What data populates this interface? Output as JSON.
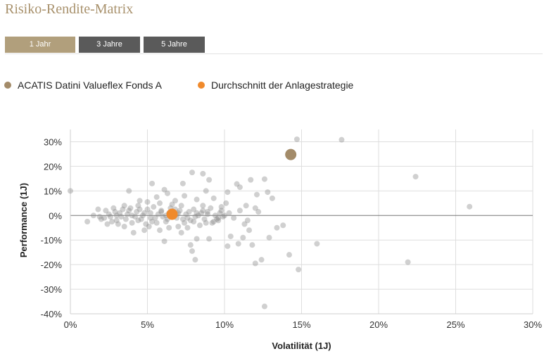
{
  "page": {
    "title": "Risiko-Rendite-Matrix"
  },
  "tabs": [
    {
      "label": "1 Jahr",
      "active": true,
      "color": "#b19f7c"
    },
    {
      "label": "3 Jahre",
      "active": false,
      "color": "#5a5a5a"
    },
    {
      "label": "5 Jahre",
      "active": false,
      "color": "#5a5a5a"
    }
  ],
  "legend": [
    {
      "label": "ACATIS Datini Valueflex Fonds A",
      "color": "#a38b69"
    },
    {
      "label": "Durchschnitt der Anlagestrategie",
      "color": "#f08a2c"
    }
  ],
  "chart_data": {
    "type": "scatter",
    "xlabel": "Volatilität (1J)",
    "ylabel": "Performance (1J)",
    "xlim": [
      0,
      30
    ],
    "ylim": [
      -40,
      35
    ],
    "x_ticks": [
      {
        "value": 0,
        "label": "0%"
      },
      {
        "value": 5,
        "label": "5%"
      },
      {
        "value": 10,
        "label": "10%"
      },
      {
        "value": 15,
        "label": "15%"
      },
      {
        "value": 20,
        "label": "20%"
      },
      {
        "value": 25,
        "label": "25%"
      },
      {
        "value": 30,
        "label": "30%"
      }
    ],
    "y_ticks": [
      {
        "value": 30,
        "label": "30%"
      },
      {
        "value": 20,
        "label": "20%"
      },
      {
        "value": 10,
        "label": "10%"
      },
      {
        "value": 0,
        "label": "0%"
      },
      {
        "value": -10,
        "label": "-10%"
      },
      {
        "value": -20,
        "label": "-20%"
      },
      {
        "value": -30,
        "label": "-30%"
      },
      {
        "value": -40,
        "label": "-40%"
      }
    ],
    "grid": true,
    "series": [
      {
        "name": "ACATIS Datini Valueflex Fonds A",
        "color": "#a38b69",
        "points": [
          {
            "x": 14.3,
            "y": 24.8
          }
        ]
      },
      {
        "name": "Durchschnitt der Anlagestrategie",
        "color": "#f08a2c",
        "points": [
          {
            "x": 6.6,
            "y": 0.5
          }
        ]
      },
      {
        "name": "",
        "color": "#8a8a8a",
        "points": [
          {
            "x": 14.7,
            "y": 31.0
          },
          {
            "x": 17.6,
            "y": 30.8
          },
          {
            "x": 22.4,
            "y": 15.8
          },
          {
            "x": 25.9,
            "y": 3.6
          },
          {
            "x": 0.0,
            "y": 10.0
          },
          {
            "x": 3.8,
            "y": 10.0
          },
          {
            "x": 5.3,
            "y": 13.0
          },
          {
            "x": 6.1,
            "y": 10.5
          },
          {
            "x": 7.9,
            "y": 17.5
          },
          {
            "x": 8.6,
            "y": 17.0
          },
          {
            "x": 9.0,
            "y": 14.5
          },
          {
            "x": 7.3,
            "y": 13.0
          },
          {
            "x": 8.8,
            "y": 10.0
          },
          {
            "x": 10.2,
            "y": 9.5
          },
          {
            "x": 10.8,
            "y": 12.8
          },
          {
            "x": 11.0,
            "y": 11.5
          },
          {
            "x": 11.7,
            "y": 14.5
          },
          {
            "x": 12.6,
            "y": 14.8
          },
          {
            "x": 12.1,
            "y": 8.5
          },
          {
            "x": 12.8,
            "y": 9.5
          },
          {
            "x": 13.1,
            "y": 7.0
          },
          {
            "x": 11.4,
            "y": 4.0
          },
          {
            "x": 12.0,
            "y": 3.0
          },
          {
            "x": 10.1,
            "y": 5.0
          },
          {
            "x": 9.8,
            "y": 3.5
          },
          {
            "x": 9.3,
            "y": 7.0
          },
          {
            "x": 11.3,
            "y": -3.5
          },
          {
            "x": 11.6,
            "y": -6.0
          },
          {
            "x": 10.4,
            "y": -8.5
          },
          {
            "x": 10.2,
            "y": -12.5
          },
          {
            "x": 10.9,
            "y": -11.5
          },
          {
            "x": 11.2,
            "y": -9.0
          },
          {
            "x": 11.8,
            "y": -12.0
          },
          {
            "x": 12.0,
            "y": -19.5
          },
          {
            "x": 12.4,
            "y": -18.0
          },
          {
            "x": 12.6,
            "y": -37.0
          },
          {
            "x": 12.9,
            "y": -9.0
          },
          {
            "x": 13.4,
            "y": -5.0
          },
          {
            "x": 13.8,
            "y": -4.0
          },
          {
            "x": 14.2,
            "y": -16.0
          },
          {
            "x": 14.8,
            "y": -22.0
          },
          {
            "x": 16.0,
            "y": -11.5
          },
          {
            "x": 21.9,
            "y": -19.0
          },
          {
            "x": 7.2,
            "y": -7.0
          },
          {
            "x": 7.9,
            "y": -14.5
          },
          {
            "x": 8.1,
            "y": -18.0
          },
          {
            "x": 7.8,
            "y": -12.0
          },
          {
            "x": 8.2,
            "y": -9.5
          },
          {
            "x": 9.0,
            "y": -9.5
          },
          {
            "x": 6.1,
            "y": -10.5
          },
          {
            "x": 5.8,
            "y": -6.0
          },
          {
            "x": 4.8,
            "y": -6.0
          },
          {
            "x": 4.1,
            "y": -7.0
          },
          {
            "x": 7.0,
            "y": -4.5
          },
          {
            "x": 7.6,
            "y": -5.0
          },
          {
            "x": 8.4,
            "y": -4.0
          },
          {
            "x": 9.2,
            "y": -3.0
          },
          {
            "x": 9.6,
            "y": -2.0
          },
          {
            "x": 8.6,
            "y": 4.0
          },
          {
            "x": 8.2,
            "y": 6.5
          },
          {
            "x": 7.4,
            "y": 8.0
          },
          {
            "x": 6.8,
            "y": 6.0
          },
          {
            "x": 6.3,
            "y": 9.0
          },
          {
            "x": 5.6,
            "y": 7.5
          },
          {
            "x": 5.0,
            "y": 5.5
          },
          {
            "x": 4.5,
            "y": 6.0
          },
          {
            "x": 3.5,
            "y": 4.0
          },
          {
            "x": 2.8,
            "y": 3.0
          },
          {
            "x": 1.8,
            "y": 2.5
          },
          {
            "x": 1.1,
            "y": -2.5
          },
          {
            "x": 1.5,
            "y": 0.0
          },
          {
            "x": 2.0,
            "y": -1.5
          },
          {
            "x": 2.4,
            "y": -3.5
          },
          {
            "x": 3.0,
            "y": -2.0
          },
          {
            "x": 3.5,
            "y": -4.5
          },
          {
            "x": 4.0,
            "y": -3.0
          },
          {
            "x": 4.4,
            "y": -2.0
          },
          {
            "x": 4.7,
            "y": 0.0
          },
          {
            "x": 5.2,
            "y": 1.0
          },
          {
            "x": 5.5,
            "y": -1.0
          },
          {
            "x": 5.9,
            "y": 2.0
          },
          {
            "x": 6.2,
            "y": -2.5
          },
          {
            "x": 6.5,
            "y": 3.0
          },
          {
            "x": 6.9,
            "y": -1.0
          },
          {
            "x": 7.1,
            "y": 2.0
          },
          {
            "x": 7.5,
            "y": 0.5
          },
          {
            "x": 7.8,
            "y": -2.0
          },
          {
            "x": 8.0,
            "y": 2.5
          },
          {
            "x": 8.3,
            "y": 0.0
          },
          {
            "x": 8.7,
            "y": -1.5
          },
          {
            "x": 8.9,
            "y": 1.5
          },
          {
            "x": 9.4,
            "y": 0.0
          },
          {
            "x": 9.7,
            "y": 1.0
          },
          {
            "x": 9.9,
            "y": -0.5
          },
          {
            "x": 3.2,
            "y": 1.0
          },
          {
            "x": 3.8,
            "y": 2.0
          },
          {
            "x": 4.2,
            "y": -0.5
          },
          {
            "x": 2.5,
            "y": 0.5
          },
          {
            "x": 2.2,
            "y": -1.0
          },
          {
            "x": 3.3,
            "y": -0.5
          },
          {
            "x": 3.7,
            "y": 0.5
          },
          {
            "x": 4.3,
            "y": 1.5
          },
          {
            "x": 4.6,
            "y": -1.5
          },
          {
            "x": 5.0,
            "y": 2.5
          },
          {
            "x": 5.3,
            "y": -2.5
          },
          {
            "x": 5.7,
            "y": 0.5
          },
          {
            "x": 6.0,
            "y": -0.5
          },
          {
            "x": 6.4,
            "y": 1.0
          },
          {
            "x": 6.7,
            "y": -0.5
          },
          {
            "x": 7.0,
            "y": 1.0
          },
          {
            "x": 7.3,
            "y": -1.5
          },
          {
            "x": 7.7,
            "y": 1.5
          },
          {
            "x": 8.1,
            "y": -0.5
          },
          {
            "x": 8.5,
            "y": 1.0
          },
          {
            "x": 8.8,
            "y": -3.0
          },
          {
            "x": 9.1,
            "y": 3.0
          },
          {
            "x": 9.5,
            "y": -1.5
          },
          {
            "x": 2.7,
            "y": -2.5
          },
          {
            "x": 3.1,
            "y": -3.5
          },
          {
            "x": 3.6,
            "y": -1.5
          },
          {
            "x": 4.9,
            "y": -3.5
          },
          {
            "x": 5.4,
            "y": 3.5
          },
          {
            "x": 6.6,
            "y": 4.5
          },
          {
            "x": 7.2,
            "y": 4.0
          },
          {
            "x": 5.1,
            "y": -4.5
          },
          {
            "x": 6.4,
            "y": -5.0
          },
          {
            "x": 5.8,
            "y": 5.0
          },
          {
            "x": 4.4,
            "y": 4.0
          },
          {
            "x": 3.9,
            "y": 3.0
          },
          {
            "x": 2.9,
            "y": 1.5
          },
          {
            "x": 1.9,
            "y": -0.5
          },
          {
            "x": 2.3,
            "y": 2.0
          },
          {
            "x": 4.0,
            "y": 0.0
          },
          {
            "x": 4.5,
            "y": 2.5
          },
          {
            "x": 5.6,
            "y": -3.0
          },
          {
            "x": 6.2,
            "y": 0.0
          },
          {
            "x": 6.8,
            "y": 2.5
          },
          {
            "x": 7.4,
            "y": -3.0
          },
          {
            "x": 8.0,
            "y": -2.5
          },
          {
            "x": 8.6,
            "y": 2.0
          },
          {
            "x": 9.3,
            "y": -2.5
          },
          {
            "x": 9.8,
            "y": 2.0
          },
          {
            "x": 10.3,
            "y": 1.0
          },
          {
            "x": 10.6,
            "y": -1.0
          },
          {
            "x": 11.0,
            "y": 2.0
          },
          {
            "x": 11.5,
            "y": -2.0
          },
          {
            "x": 12.2,
            "y": 1.5
          },
          {
            "x": 3.4,
            "y": 2.5
          },
          {
            "x": 2.6,
            "y": -0.5
          },
          {
            "x": 3.0,
            "y": 0.0
          },
          {
            "x": 4.8,
            "y": 1.0
          },
          {
            "x": 5.2,
            "y": -1.0
          },
          {
            "x": 5.9,
            "y": 1.5
          },
          {
            "x": 6.3,
            "y": -1.5
          },
          {
            "x": 6.9,
            "y": 0.5
          },
          {
            "x": 7.6,
            "y": -1.0
          },
          {
            "x": 8.2,
            "y": 1.0
          },
          {
            "x": 8.9,
            "y": 0.5
          },
          {
            "x": 9.6,
            "y": -1.0
          },
          {
            "x": 10.0,
            "y": 0.0
          }
        ]
      }
    ]
  }
}
